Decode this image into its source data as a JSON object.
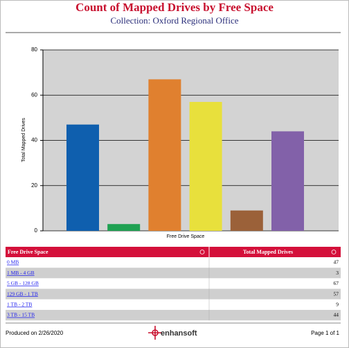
{
  "header": {
    "title": "Count of Mapped Drives by Free Space",
    "subtitle": "Collection: Oxford Regional Office"
  },
  "chart_data": {
    "type": "bar",
    "categories": [
      null,
      null,
      null,
      null,
      null,
      null
    ],
    "values": [
      47,
      3,
      67,
      57,
      9,
      44
    ],
    "colors": [
      "#0f5fae",
      "#1fa152",
      "#e0802f",
      "#e8e03c",
      "#9b6139",
      "#8261a9"
    ],
    "xlabel": "Free Drive Space",
    "ylabel": "Total Mapped Drives",
    "ylim": [
      0,
      80
    ],
    "yticks": [
      0,
      20,
      40,
      60,
      80
    ],
    "grid": true
  },
  "table": {
    "columns": [
      "Free Drive Space",
      "Total Mapped Drives"
    ],
    "rows": [
      [
        "0 MB",
        "47"
      ],
      [
        "1 MB - 4 GB",
        "3"
      ],
      [
        "5 GB - 128 GB",
        "67"
      ],
      [
        "129 GB - 1 TB",
        "57"
      ],
      [
        "1 TB - 2 TB",
        "9"
      ],
      [
        "3 TB - 15 TB",
        "44"
      ]
    ]
  },
  "footer": {
    "produced": "Produced on 2/26/2020",
    "logo": "enhansoft",
    "page": "Page 1 of 1"
  }
}
